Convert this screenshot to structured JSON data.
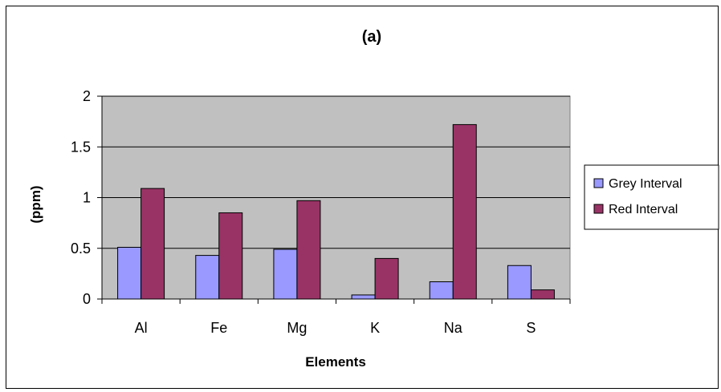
{
  "chart_data": {
    "type": "bar",
    "title": "(a)",
    "xlabel": "Elements",
    "ylabel": "(ppm)",
    "categories": [
      "Al",
      "Fe",
      "Mg",
      "K",
      "Na",
      "S"
    ],
    "series": [
      {
        "name": "Grey Interval",
        "color": "#9999ff",
        "values": [
          0.51,
          0.43,
          0.49,
          0.04,
          0.17,
          0.33
        ]
      },
      {
        "name": "Red Interval",
        "color": "#993366",
        "values": [
          1.09,
          0.85,
          0.97,
          0.4,
          1.72,
          0.09
        ]
      }
    ],
    "ylim": [
      0,
      2
    ],
    "yticks": [
      "0",
      "0.5",
      "1",
      "1.5",
      "2"
    ],
    "yticks_values": [
      0,
      0.5,
      1,
      1.5,
      2
    ],
    "grid": true,
    "plot_background": "#c0c0c0",
    "legend_position": "right"
  }
}
